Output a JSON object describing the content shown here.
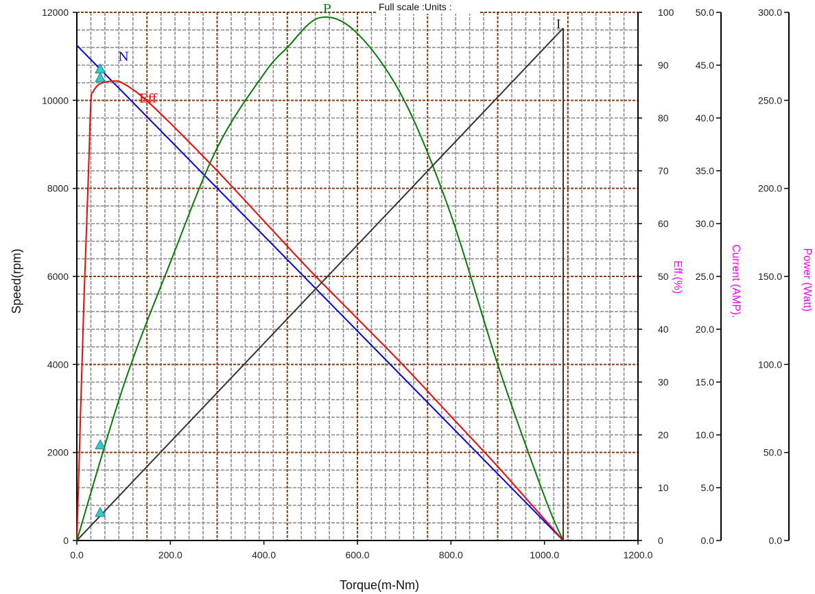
{
  "chart_data": {
    "type": "line",
    "title": "Full scale :Units :",
    "x_axis": {
      "label": "Torque(m-Nm)",
      "range": [
        0,
        1200
      ],
      "ticks": [
        "0.0",
        "200.0",
        "400.0",
        "600.0",
        "800.0",
        "1000.0",
        "1200.0"
      ]
    },
    "y_axes": {
      "speed": {
        "label": "Speed(rpm)",
        "range": [
          0,
          12000
        ],
        "ticks": [
          "0",
          "2000",
          "4000",
          "6000",
          "8000",
          "10000",
          "12000"
        ]
      },
      "eff": {
        "label": "Eff.(%)",
        "range": [
          0,
          100
        ],
        "ticks": [
          "0",
          "10",
          "20",
          "30",
          "40",
          "50",
          "60",
          "70",
          "80",
          "90",
          "100"
        ]
      },
      "current": {
        "label": "Current (AMP).",
        "range": [
          0,
          50
        ],
        "ticks": [
          "0.0",
          "5.0",
          "10.0",
          "15.0",
          "20.0",
          "25.0",
          "30.0",
          "35.0",
          "40.0",
          "45.0",
          "50.0"
        ]
      },
      "power": {
        "label": "Power (Watt)",
        "range": [
          0,
          300
        ],
        "ticks": [
          "0.0",
          "50.0",
          "100.0",
          "150.0",
          "200.0",
          "250.0",
          "300.0"
        ]
      }
    },
    "grid": true,
    "series": [
      {
        "name": "N",
        "axis": "speed",
        "color": "#0000ff",
        "points": [
          [
            0,
            11250
          ],
          [
            1040,
            0
          ]
        ]
      },
      {
        "name": "Eff",
        "axis": "eff",
        "color": "#ff0000",
        "points": [
          [
            0,
            0
          ],
          [
            15,
            45
          ],
          [
            25,
            70
          ],
          [
            30,
            83
          ],
          [
            35,
            85
          ],
          [
            50,
            86.5
          ],
          [
            80,
            87
          ],
          [
            100,
            86.5
          ],
          [
            140,
            84
          ],
          [
            200,
            79
          ],
          [
            300,
            70
          ],
          [
            400,
            60.5
          ],
          [
            500,
            51
          ],
          [
            600,
            42
          ],
          [
            700,
            33
          ],
          [
            800,
            23.5
          ],
          [
            900,
            14
          ],
          [
            1000,
            4
          ],
          [
            1040,
            0
          ]
        ]
      },
      {
        "name": "P",
        "axis": "power",
        "color": "#008000",
        "points": [
          [
            0,
            0
          ],
          [
            100,
            88
          ],
          [
            200,
            158
          ],
          [
            300,
            223
          ],
          [
            400,
            265
          ],
          [
            450,
            280
          ],
          [
            520,
            297
          ],
          [
            600,
            288
          ],
          [
            700,
            250
          ],
          [
            800,
            185
          ],
          [
            900,
            100
          ],
          [
            1000,
            25
          ],
          [
            1040,
            0
          ]
        ]
      },
      {
        "name": "I",
        "axis": "current",
        "color": "#333333",
        "points": [
          [
            0,
            0
          ],
          [
            1040,
            48.5
          ]
        ]
      }
    ],
    "vertical_line": {
      "x": 1040,
      "color": "#333333"
    },
    "markers": {
      "color": "#33cccc",
      "points": [
        {
          "x": 50,
          "axis": "speed",
          "value": 10700
        },
        {
          "x": 50,
          "axis": "eff",
          "value": 87.5
        },
        {
          "x": 50,
          "axis": "power",
          "value": 54
        },
        {
          "x": 50,
          "axis": "current",
          "value": 2.6
        }
      ]
    },
    "curve_labels": [
      {
        "text": "N",
        "color": "#0000ff"
      },
      {
        "text": "Eff",
        "color": "#ff0000"
      },
      {
        "text": "P",
        "color": "#008000"
      },
      {
        "text": "I",
        "color": "#222222"
      }
    ]
  }
}
